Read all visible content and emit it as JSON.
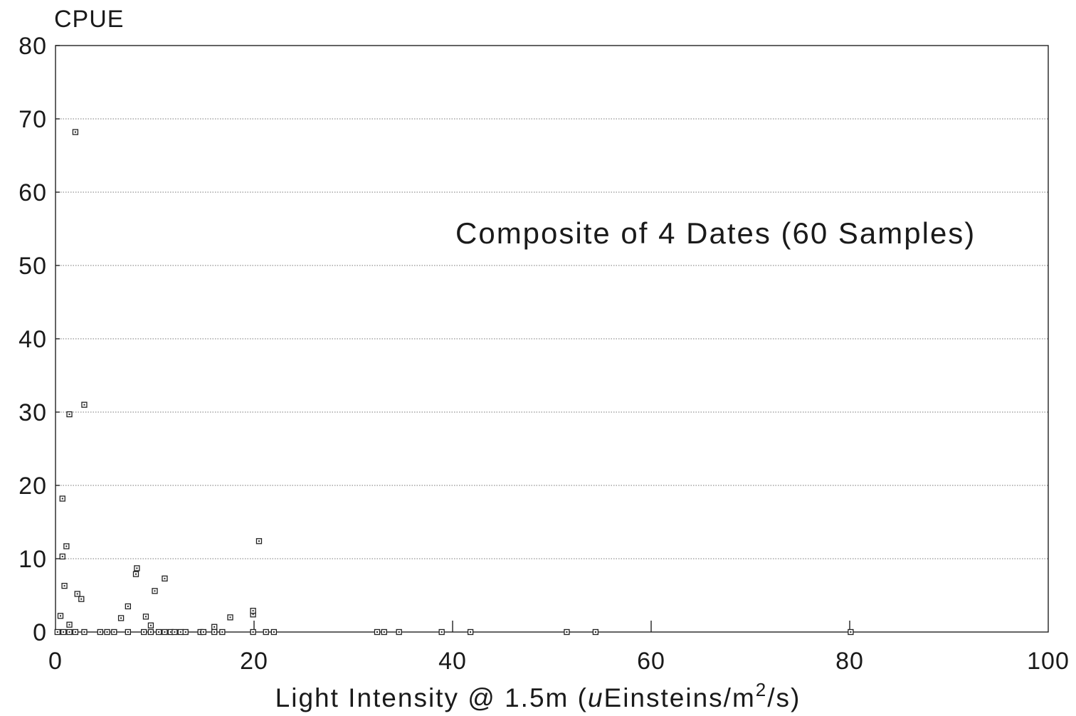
{
  "chart_data": {
    "type": "scatter",
    "title": "",
    "annotation": "Composite of 4 Dates (60 Samples)",
    "ylabel": "CPUE",
    "xlabel": {
      "prefix": "Light Intensity @ 1.5m (",
      "italic": "u",
      "mid": "Einsteins/m",
      "sup": "2",
      "suffix": "/s)"
    },
    "xlim": [
      0,
      100
    ],
    "ylim": [
      0,
      80
    ],
    "x_ticks": [
      0,
      20,
      40,
      60,
      80,
      100
    ],
    "y_ticks": [
      0,
      10,
      20,
      30,
      40,
      50,
      60,
      70,
      80
    ],
    "grid": "horizontal dotted",
    "marker": "small square",
    "points": [
      {
        "x": 0.2,
        "y": 0
      },
      {
        "x": 0.5,
        "y": 2.2
      },
      {
        "x": 0.7,
        "y": 10.3
      },
      {
        "x": 0.7,
        "y": 18.2
      },
      {
        "x": 0.8,
        "y": 0
      },
      {
        "x": 0.9,
        "y": 6.3
      },
      {
        "x": 1.1,
        "y": 11.7
      },
      {
        "x": 1.4,
        "y": 0
      },
      {
        "x": 1.4,
        "y": 1
      },
      {
        "x": 1.4,
        "y": 29.7
      },
      {
        "x": 2.0,
        "y": 0
      },
      {
        "x": 2.0,
        "y": 68.2
      },
      {
        "x": 2.2,
        "y": 5.2
      },
      {
        "x": 2.6,
        "y": 4.5
      },
      {
        "x": 2.9,
        "y": 0
      },
      {
        "x": 2.9,
        "y": 31
      },
      {
        "x": 4.5,
        "y": 0
      },
      {
        "x": 5.2,
        "y": 0
      },
      {
        "x": 5.9,
        "y": 0
      },
      {
        "x": 6.6,
        "y": 1.9
      },
      {
        "x": 7.3,
        "y": 0
      },
      {
        "x": 7.3,
        "y": 3.5
      },
      {
        "x": 8.1,
        "y": 7.9
      },
      {
        "x": 8.2,
        "y": 8.7
      },
      {
        "x": 8.9,
        "y": 0
      },
      {
        "x": 9.1,
        "y": 2.1
      },
      {
        "x": 9.6,
        "y": 0
      },
      {
        "x": 9.6,
        "y": 0.9
      },
      {
        "x": 10.0,
        "y": 5.6
      },
      {
        "x": 10.4,
        "y": 0
      },
      {
        "x": 11.0,
        "y": 0
      },
      {
        "x": 11.0,
        "y": 7.3
      },
      {
        "x": 11.6,
        "y": 0
      },
      {
        "x": 12.0,
        "y": 0
      },
      {
        "x": 12.6,
        "y": 0
      },
      {
        "x": 13.1,
        "y": 0
      },
      {
        "x": 14.6,
        "y": 0
      },
      {
        "x": 14.9,
        "y": 0
      },
      {
        "x": 16.0,
        "y": 0
      },
      {
        "x": 16.0,
        "y": 0.7
      },
      {
        "x": 16.8,
        "y": 0
      },
      {
        "x": 17.6,
        "y": 2
      },
      {
        "x": 19.9,
        "y": 0
      },
      {
        "x": 19.9,
        "y": 2.4
      },
      {
        "x": 19.9,
        "y": 2.9
      },
      {
        "x": 20.5,
        "y": 12.4
      },
      {
        "x": 21.2,
        "y": 0
      },
      {
        "x": 22.0,
        "y": 0
      },
      {
        "x": 32.4,
        "y": 0
      },
      {
        "x": 33.1,
        "y": 0
      },
      {
        "x": 34.6,
        "y": 0
      },
      {
        "x": 38.9,
        "y": 0
      },
      {
        "x": 41.8,
        "y": 0
      },
      {
        "x": 51.5,
        "y": 0
      },
      {
        "x": 54.4,
        "y": 0
      },
      {
        "x": 80.1,
        "y": 0
      }
    ]
  }
}
